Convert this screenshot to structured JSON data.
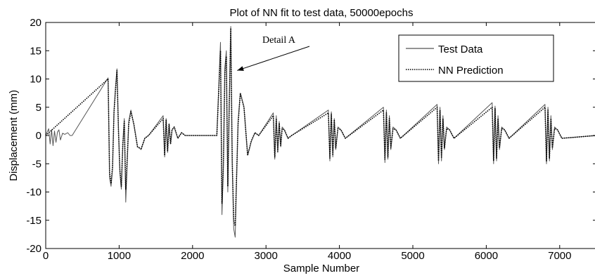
{
  "chart_data": {
    "type": "line",
    "title": "Plot of NN fit to test data, 50000epochs",
    "xlabel": "Sample Number",
    "ylabel": "Displacement (mm)",
    "xlim": [
      0,
      7500
    ],
    "ylim": [
      -20,
      20
    ],
    "xticks": [
      0,
      1000,
      2000,
      3000,
      4000,
      5000,
      6000,
      7000
    ],
    "yticks": [
      -20,
      -15,
      -10,
      -5,
      0,
      5,
      10,
      15,
      20
    ],
    "grid": false,
    "legend_position": "top-right",
    "annotation": {
      "text": "Detail A",
      "target": [
        2550,
        11.5
      ]
    },
    "series": [
      {
        "name": "Test Data",
        "style": "solid",
        "color": "#555555",
        "x": [
          0,
          40,
          60,
          80,
          100,
          120,
          140,
          160,
          180,
          200,
          230,
          260,
          300,
          330,
          360,
          850,
          870,
          890,
          910,
          930,
          950,
          970,
          990,
          1010,
          1030,
          1050,
          1070,
          1090,
          1110,
          1130,
          1160,
          1200,
          1250,
          1300,
          1350,
          1400,
          1600,
          1620,
          1640,
          1660,
          1680,
          1700,
          1720,
          1750,
          1800,
          1850,
          1900,
          2330,
          2380,
          2400,
          2420,
          2440,
          2460,
          2480,
          2500,
          2520,
          2540,
          2560,
          2580,
          2600,
          2620,
          2650,
          2700,
          2750,
          2800,
          2850,
          2900,
          3100,
          3120,
          3140,
          3160,
          3180,
          3200,
          3220,
          3250,
          3300,
          3350,
          3850,
          3870,
          3890,
          3910,
          3930,
          3950,
          3980,
          4020,
          4080,
          4600,
          4620,
          4640,
          4660,
          4680,
          4700,
          4730,
          4770,
          4830,
          5330,
          5350,
          5370,
          5390,
          5410,
          5430,
          5460,
          5500,
          5560,
          6080,
          6100,
          6120,
          6140,
          6160,
          6180,
          6210,
          6250,
          6310,
          6800,
          6820,
          6840,
          6860,
          6880,
          6900,
          6930,
          6970,
          7030,
          7500
        ],
        "y": [
          0,
          1.2,
          -1.5,
          1.0,
          -1.8,
          0.8,
          -1.2,
          0.6,
          1.0,
          -0.8,
          0.4,
          0.2,
          0.5,
          0,
          0,
          10.2,
          -7.5,
          -9.0,
          -6.0,
          4.5,
          8.5,
          11.8,
          1.5,
          -6.5,
          -9.5,
          -2.0,
          3.0,
          -11.8,
          -5.0,
          2.5,
          4.5,
          2.0,
          -2.0,
          -2.5,
          -0.5,
          0,
          3.5,
          -3.8,
          3.0,
          -3.0,
          2.0,
          -1.5,
          1.0,
          1.5,
          -0.5,
          0.5,
          0,
          0,
          16.5,
          -14.0,
          -6.0,
          12.0,
          15.0,
          -10.0,
          6.0,
          19.3,
          -5.0,
          -16.5,
          -18.0,
          -8.0,
          2.5,
          7.5,
          5.0,
          -3.5,
          -1.0,
          0.5,
          0,
          4.0,
          -4.2,
          3.5,
          -3.0,
          2.5,
          -2.0,
          1.5,
          1.0,
          -0.5,
          0,
          4.5,
          -4.5,
          4.2,
          -3.8,
          3.0,
          -2.5,
          1.5,
          1.0,
          -0.5,
          5.0,
          -4.8,
          4.5,
          -4.2,
          3.5,
          -2.5,
          1.5,
          1.0,
          -0.5,
          5.5,
          -5.0,
          5.0,
          -4.5,
          3.5,
          -2.5,
          1.5,
          1.0,
          -0.5,
          5.8,
          -5.0,
          5.2,
          -4.5,
          3.5,
          -2.5,
          1.5,
          1.0,
          -0.5,
          5.5,
          -5.0,
          5.0,
          -4.5,
          3.5,
          -2.5,
          1.5,
          1.0,
          -0.5,
          0
        ]
      },
      {
        "name": "NN Prediction",
        "style": "dotted",
        "color": "#000000",
        "x": [
          0,
          850,
          870,
          890,
          910,
          930,
          950,
          970,
          990,
          1010,
          1030,
          1050,
          1070,
          1090,
          1110,
          1130,
          1160,
          1200,
          1250,
          1300,
          1350,
          1400,
          1600,
          1620,
          1640,
          1660,
          1680,
          1700,
          1720,
          1750,
          1800,
          1850,
          1900,
          2330,
          2380,
          2400,
          2420,
          2440,
          2460,
          2480,
          2500,
          2520,
          2540,
          2560,
          2580,
          2600,
          2620,
          2650,
          2700,
          2750,
          2800,
          2850,
          2900,
          3100,
          3120,
          3140,
          3160,
          3180,
          3200,
          3220,
          3250,
          3300,
          3350,
          3850,
          3870,
          3890,
          3910,
          3930,
          3950,
          3980,
          4020,
          4080,
          4600,
          4620,
          4640,
          4660,
          4680,
          4700,
          4730,
          4770,
          4830,
          5330,
          5350,
          5370,
          5390,
          5410,
          5430,
          5460,
          5500,
          5560,
          6080,
          6100,
          6120,
          6140,
          6160,
          6180,
          6210,
          6250,
          6310,
          6800,
          6820,
          6840,
          6860,
          6880,
          6900,
          6930,
          6970,
          7030,
          7500
        ],
        "y": [
          0,
          10.0,
          -6.5,
          -8.5,
          -5.5,
          4.0,
          8.0,
          11.5,
          1.0,
          -6.0,
          -9.0,
          -1.5,
          2.5,
          -9.5,
          -4.0,
          2.0,
          4.2,
          2.0,
          -2.0,
          -2.3,
          -0.5,
          0,
          3.0,
          -3.5,
          2.8,
          -2.8,
          2.0,
          -1.5,
          1.0,
          1.5,
          -0.5,
          0.5,
          0,
          0,
          15.0,
          -12.0,
          -5.0,
          11.0,
          14.0,
          -9.0,
          5.5,
          19.0,
          -4.5,
          -15.0,
          -16.0,
          -7.0,
          2.0,
          7.5,
          5.0,
          -3.5,
          -1.0,
          0.5,
          0,
          3.5,
          -3.8,
          3.0,
          -2.8,
          2.2,
          -1.8,
          1.2,
          1.0,
          -0.5,
          0,
          4.0,
          -4.0,
          3.8,
          -3.5,
          2.8,
          -2.2,
          1.2,
          1.0,
          -0.5,
          4.5,
          -4.2,
          4.0,
          -3.8,
          3.0,
          -2.2,
          1.2,
          1.0,
          -0.5,
          5.0,
          -4.5,
          4.5,
          -4.0,
          3.0,
          -2.2,
          1.2,
          1.0,
          -0.5,
          5.0,
          -4.5,
          4.8,
          -4.0,
          3.0,
          -2.2,
          1.2,
          1.0,
          -0.5,
          5.0,
          -4.5,
          4.5,
          -4.0,
          3.0,
          -2.2,
          1.2,
          1.0,
          -0.5,
          0
        ]
      }
    ]
  }
}
